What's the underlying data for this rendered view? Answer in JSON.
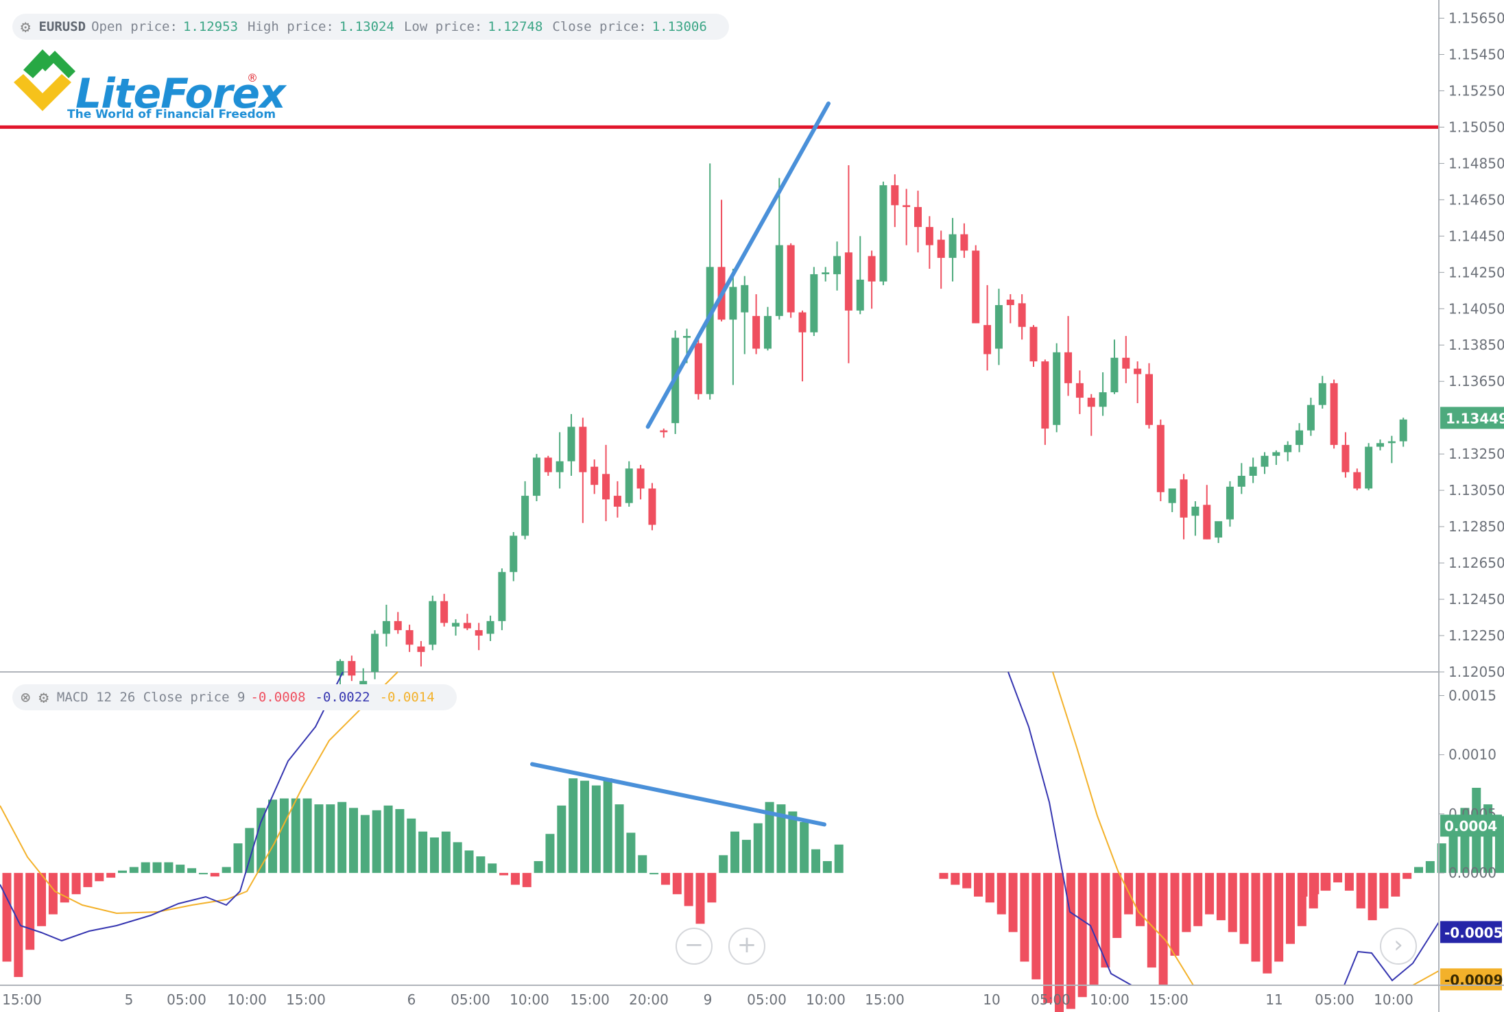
{
  "colors": {
    "bull": "#4daa7d",
    "bear": "#ef4f5f",
    "macd_line": "#3535b0",
    "signal_line": "#f3b12a",
    "resistance": "#e1152b",
    "trend": "#4a90d9",
    "grid_axis": "#9aa0a6",
    "label_green": "#3aa585"
  },
  "price_legend": {
    "gear_icon": "gear-icon",
    "symbol": "EURUSD",
    "open_label": "Open price:",
    "open": "1.12953",
    "high_label": "High price:",
    "high": "1.13024",
    "low_label": "Low price:",
    "low": "1.12748",
    "close_label": "Close price:",
    "close": "1.13006"
  },
  "macd_legend": {
    "close_icon": "close-icon",
    "gear_icon": "gear-icon",
    "title": "MACD 12 26 Close price 9",
    "hist": "-0.0008",
    "macd": "-0.0022",
    "signal": "-0.0014"
  },
  "logo": {
    "name": "LiteForex",
    "tagline": "The World of Financial Freedom",
    "reg": "®"
  },
  "zoom": {
    "minus": "−",
    "plus": "+",
    "next": "›"
  },
  "chart_data": [
    {
      "type": "candlestick",
      "symbol": "EURUSD",
      "price_ticks": [
        "1.15650",
        "1.15450",
        "1.15250",
        "1.15050",
        "1.14850",
        "1.14650",
        "1.14450",
        "1.14250",
        "1.14050",
        "1.13850",
        "1.13650",
        "1.13449",
        "1.13250",
        "1.13050",
        "1.12850",
        "1.12650",
        "1.12450",
        "1.12250",
        "1.12050"
      ],
      "current_price": "1.13449",
      "ylim": [
        1.1205,
        1.1575
      ],
      "horizontal_line": 1.1505,
      "trendline": [
        [
          1.134,
          29
        ],
        [
          1.1518,
          40
        ]
      ],
      "candles": [
        [
          1.1203,
          1.1212,
          1.1198,
          1.1211
        ],
        [
          1.1211,
          1.1214,
          1.12,
          1.1203
        ],
        [
          1.1197,
          1.1207,
          1.1192,
          1.12
        ],
        [
          1.1205,
          1.1228,
          1.1201,
          1.1226
        ],
        [
          1.1226,
          1.1242,
          1.1219,
          1.1233
        ],
        [
          1.1233,
          1.1238,
          1.1226,
          1.1228
        ],
        [
          1.1228,
          1.1231,
          1.1216,
          1.122
        ],
        [
          1.1219,
          1.1222,
          1.1208,
          1.1216
        ],
        [
          1.122,
          1.1247,
          1.1217,
          1.1244
        ],
        [
          1.1244,
          1.1248,
          1.123,
          1.1232
        ],
        [
          1.123,
          1.1234,
          1.1225,
          1.1232
        ],
        [
          1.1232,
          1.1237,
          1.1228,
          1.1229
        ],
        [
          1.1228,
          1.1232,
          1.1217,
          1.1225
        ],
        [
          1.1226,
          1.1236,
          1.1222,
          1.1233
        ],
        [
          1.1233,
          1.1262,
          1.1228,
          1.126
        ],
        [
          1.126,
          1.1282,
          1.1255,
          1.128
        ],
        [
          1.128,
          1.131,
          1.1278,
          1.1302
        ],
        [
          1.1302,
          1.1325,
          1.1299,
          1.1323
        ],
        [
          1.1323,
          1.1324,
          1.1313,
          1.1315
        ],
        [
          1.1315,
          1.1337,
          1.1306,
          1.1321
        ],
        [
          1.1321,
          1.1347,
          1.1313,
          1.134
        ],
        [
          1.134,
          1.1345,
          1.1287,
          1.1315
        ],
        [
          1.1318,
          1.1322,
          1.1303,
          1.1308
        ],
        [
          1.1314,
          1.133,
          1.1288,
          1.13
        ],
        [
          1.1302,
          1.131,
          1.129,
          1.1296
        ],
        [
          1.1298,
          1.1321,
          1.1296,
          1.1317
        ],
        [
          1.1317,
          1.1319,
          1.13,
          1.1306
        ],
        [
          1.1306,
          1.1309,
          1.1283,
          1.1286
        ],
        [
          1.1338,
          1.1339,
          1.1334,
          1.1337
        ],
        [
          1.1342,
          1.1393,
          1.1336,
          1.1389
        ],
        [
          1.1389,
          1.1394,
          1.1375,
          1.139
        ],
        [
          1.1386,
          1.1391,
          1.1355,
          1.1358
        ],
        [
          1.1358,
          1.1485,
          1.1355,
          1.1428
        ],
        [
          1.1428,
          1.1465,
          1.1398,
          1.1399
        ],
        [
          1.1399,
          1.1427,
          1.1363,
          1.1417
        ],
        [
          1.1403,
          1.1423,
          1.138,
          1.1418
        ],
        [
          1.1401,
          1.1413,
          1.138,
          1.1383
        ],
        [
          1.1383,
          1.1406,
          1.1382,
          1.1401
        ],
        [
          1.1401,
          1.1477,
          1.1399,
          1.144
        ],
        [
          1.144,
          1.1441,
          1.14,
          1.1403
        ],
        [
          1.1403,
          1.1404,
          1.1365,
          1.1392
        ],
        [
          1.1392,
          1.1428,
          1.139,
          1.1424
        ],
        [
          1.1424,
          1.1428,
          1.142,
          1.1425
        ],
        [
          1.1424,
          1.1442,
          1.1415,
          1.1434
        ],
        [
          1.1436,
          1.1484,
          1.1375,
          1.1404
        ],
        [
          1.1404,
          1.1445,
          1.1402,
          1.1421
        ],
        [
          1.1434,
          1.1437,
          1.1405,
          1.142
        ],
        [
          1.142,
          1.1475,
          1.1418,
          1.1473
        ],
        [
          1.1473,
          1.1479,
          1.145,
          1.1462
        ],
        [
          1.1462,
          1.1471,
          1.144,
          1.1461
        ],
        [
          1.1461,
          1.147,
          1.1436,
          1.145
        ],
        [
          1.145,
          1.1456,
          1.1427,
          1.144
        ],
        [
          1.1443,
          1.1448,
          1.1416,
          1.1433
        ],
        [
          1.1433,
          1.1455,
          1.142,
          1.1446
        ],
        [
          1.1446,
          1.1452,
          1.1433,
          1.1437
        ],
        [
          1.1437,
          1.144,
          1.1397,
          1.1397
        ],
        [
          1.1396,
          1.1418,
          1.1371,
          1.138
        ],
        [
          1.1383,
          1.1416,
          1.1374,
          1.1407
        ],
        [
          1.141,
          1.1413,
          1.1397,
          1.1407
        ],
        [
          1.1408,
          1.1413,
          1.1388,
          1.1395
        ],
        [
          1.1395,
          1.1396,
          1.1373,
          1.1376
        ],
        [
          1.1376,
          1.1377,
          1.133,
          1.1339
        ],
        [
          1.1341,
          1.1386,
          1.1337,
          1.1381
        ],
        [
          1.1381,
          1.1401,
          1.1357,
          1.1364
        ],
        [
          1.1364,
          1.1371,
          1.1347,
          1.1356
        ],
        [
          1.1356,
          1.1358,
          1.1335,
          1.1351
        ],
        [
          1.1351,
          1.137,
          1.1346,
          1.1359
        ],
        [
          1.1359,
          1.1388,
          1.1358,
          1.1378
        ],
        [
          1.1378,
          1.139,
          1.1364,
          1.1372
        ],
        [
          1.1372,
          1.1376,
          1.1353,
          1.1369
        ],
        [
          1.1369,
          1.1375,
          1.1339,
          1.1341
        ],
        [
          1.1341,
          1.1344,
          1.1299,
          1.1304
        ],
        [
          1.1298,
          1.1306,
          1.1293,
          1.1306
        ],
        [
          1.1311,
          1.1314,
          1.1278,
          1.129
        ],
        [
          1.1291,
          1.1299,
          1.128,
          1.1296
        ],
        [
          1.1297,
          1.1308,
          1.1278,
          1.1278
        ],
        [
          1.1279,
          1.1285,
          1.1276,
          1.1288
        ],
        [
          1.1289,
          1.131,
          1.1285,
          1.1307
        ],
        [
          1.1307,
          1.132,
          1.1303,
          1.1313
        ],
        [
          1.1313,
          1.1323,
          1.1309,
          1.1318
        ],
        [
          1.1318,
          1.1326,
          1.1314,
          1.1324
        ],
        [
          1.1324,
          1.1327,
          1.1319,
          1.1326
        ],
        [
          1.1326,
          1.1332,
          1.1321,
          1.133
        ],
        [
          1.133,
          1.1342,
          1.1326,
          1.1338
        ],
        [
          1.1338,
          1.1356,
          1.1335,
          1.1352
        ],
        [
          1.1352,
          1.1368,
          1.135,
          1.1364
        ],
        [
          1.1364,
          1.1366,
          1.1328,
          1.133
        ],
        [
          1.133,
          1.1337,
          1.1312,
          1.1315
        ],
        [
          1.1315,
          1.1317,
          1.1305,
          1.1306
        ],
        [
          1.1306,
          1.1331,
          1.1305,
          1.1329
        ],
        [
          1.1329,
          1.1333,
          1.1327,
          1.1331
        ],
        [
          1.1331,
          1.1335,
          1.132,
          1.1332
        ],
        [
          1.1332,
          1.1345,
          1.1329,
          1.1344
        ]
      ]
    },
    {
      "type": "bar",
      "title": "MACD 12 26 Close price 9",
      "macd_ticks": [
        "0.0015",
        "0.0010",
        "0.0005",
        "0.0004",
        "0.0000",
        "-0.0005",
        "-0.0009"
      ],
      "ylim": [
        -0.00095,
        0.0017
      ],
      "histogram_left": [
        -0.00075,
        -0.00088,
        -0.00065,
        -0.00045,
        -0.00035,
        -0.00025,
        -0.00018,
        -0.00012,
        -7e-05,
        -4e-05,
        2e-05,
        5e-05,
        9e-05,
        9e-05,
        9e-05,
        7e-05,
        4e-05,
        0.0,
        -3e-05,
        5e-05,
        0.00025,
        0.00038,
        0.00055,
        0.00062,
        0.00063,
        0.00063,
        0.00063,
        0.00058,
        0.00058,
        0.0006,
        0.00055,
        0.00049,
        0.00053,
        0.00057,
        0.00054,
        0.00046,
        0.00035,
        0.0003,
        0.00035,
        0.00026,
        0.00019,
        0.00014,
        8e-05,
        -2e-05,
        -0.0001,
        -0.00012,
        0.0001,
        0.00033,
        0.00057,
        0.0008,
        0.00078,
        0.00074,
        0.0008,
        0.00058,
        0.00034,
        0.00015,
        0.0,
        -0.0001,
        -0.00018,
        -0.00028,
        -0.00043,
        -0.00025,
        0.00015,
        0.00035,
        0.00028,
        0.00042,
        0.0006,
        0.00058,
        0.00052,
        0.00043,
        0.0002,
        0.0001,
        0.00024
      ],
      "histogram_right": [
        -0.0002,
        -0.00018,
        -0.00015,
        -8e-05,
        -0.00015,
        -0.0003,
        -0.0004,
        -0.0003,
        -0.0002,
        -5e-05,
        5e-05,
        0.0001,
        0.00025,
        0.0004,
        0.00055,
        0.00072,
        0.00058,
        0.00048,
        0.0003,
        0.00025,
        0.0003,
        0.00032
      ],
      "histogram_right_mid": [
        -5e-05,
        -0.0001,
        -0.00013,
        -0.0002,
        -0.00025,
        -0.00035,
        -0.0005,
        -0.00075,
        -0.0009,
        -0.0011,
        -0.0012,
        -0.00115,
        -0.00105,
        -0.00095,
        -0.0008,
        -0.00055,
        -0.00035,
        -0.00045,
        -0.0008,
        -0.00095,
        -0.0007,
        -0.0005,
        -0.00045,
        -0.00035,
        -0.0004,
        -0.0005,
        -0.0006,
        -0.00075,
        -0.00085,
        -0.00075,
        -0.0006,
        -0.00045,
        -0.0003,
        -0.00015
      ],
      "trendline": [
        [
          0.00092,
          0
        ],
        [
          0.00041,
          1
        ]
      ]
    }
  ],
  "x_axis_labels": [
    "15:00",
    "5",
    "05:00",
    "10:00",
    "15:00",
    "6",
    "05:00",
    "10:00",
    "15:00",
    "20:00",
    "9",
    "05:00",
    "10:00",
    "15:00",
    "10",
    "05:00",
    "10:00",
    "15:00",
    "11",
    "05:00",
    "10:00"
  ],
  "macd_current": "0.0004",
  "macd_value_label": "-0.0005",
  "signal_value_label": "-0.0009"
}
